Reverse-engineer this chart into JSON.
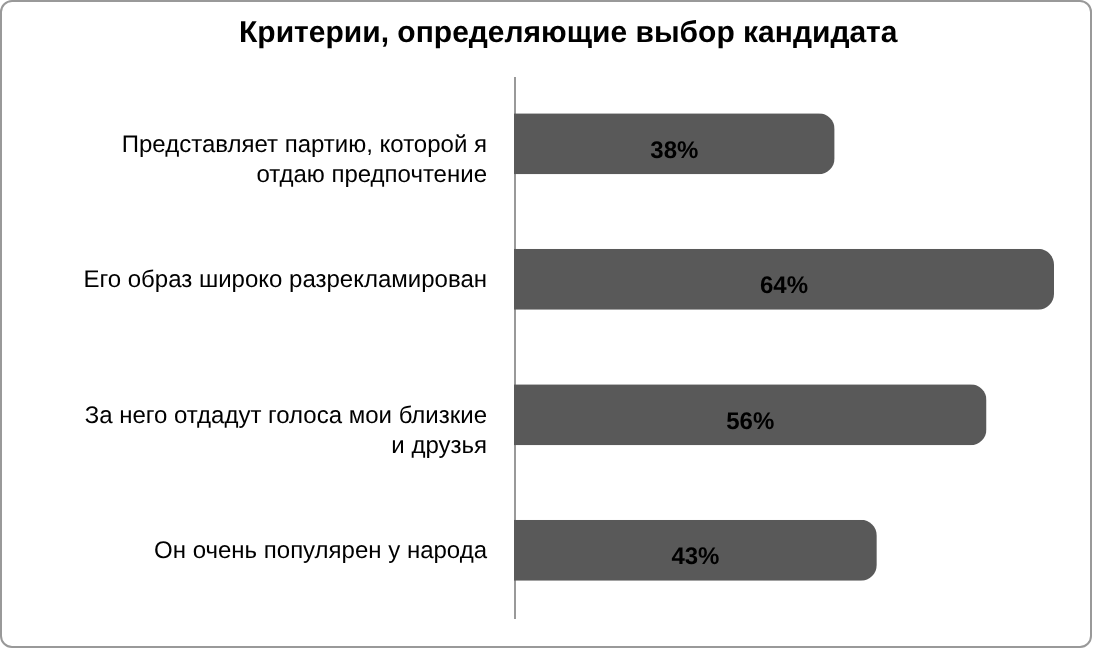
{
  "chart_data": {
    "type": "bar",
    "orientation": "horizontal",
    "title": "Критерии, определяющие выбор кандидата",
    "categories": [
      "Представляет партию, которой я отдаю предпочтение",
      "Его образ широко разрекламирован",
      "За него отдадут голоса мои близкие и друзья",
      "Он очень популярен у народа"
    ],
    "values": [
      38,
      64,
      56,
      43
    ],
    "color": "#595959",
    "value_labels": [
      "38%",
      "64%",
      "56%",
      "43%"
    ],
    "grid": false
  }
}
